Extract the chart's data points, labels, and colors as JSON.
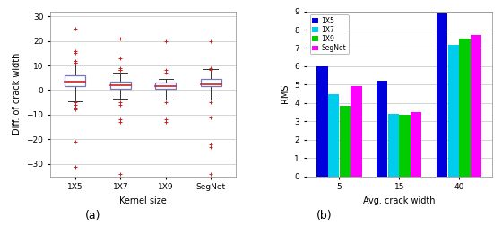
{
  "boxplot": {
    "categories": [
      "1X5",
      "1X7",
      "1X9",
      "SegNet"
    ],
    "xlabel": "Kernel size",
    "ylabel": "Diff. of crack width",
    "ylim": [
      -35,
      32
    ],
    "yticks": [
      -30,
      -20,
      -10,
      0,
      10,
      20,
      30
    ],
    "boxes": [
      {
        "q1": 1.5,
        "median": 3.5,
        "q3": 6.0,
        "whisker_low": -4.5,
        "whisker_high": 10.5
      },
      {
        "q1": 0.5,
        "median": 2.0,
        "q3": 3.5,
        "whisker_low": -3.5,
        "whisker_high": 7.0
      },
      {
        "q1": 0.5,
        "median": 1.5,
        "q3": 3.0,
        "whisker_low": -4.0,
        "whisker_high": 4.5
      },
      {
        "q1": 1.5,
        "median": 2.5,
        "q3": 4.5,
        "whisker_low": -4.0,
        "whisker_high": 8.5
      }
    ],
    "outliers": [
      [
        25,
        16,
        15,
        12,
        11,
        11,
        -5,
        -6,
        -7,
        -8,
        -21,
        -31
      ],
      [
        21,
        13,
        9,
        8,
        8,
        -5,
        -6,
        -12,
        -13,
        -34
      ],
      [
        20,
        8,
        7,
        -5,
        -12,
        -13
      ],
      [
        20,
        9,
        8,
        -5,
        -11,
        -22,
        -23,
        -34
      ]
    ],
    "box_color": "#7777bb",
    "median_color": "#cc2222",
    "whisker_color": "#333333",
    "outlier_color": "#cc2222",
    "bg_color": "#ffffff"
  },
  "barplot": {
    "groups": [
      "5",
      "15",
      "40"
    ],
    "group_positions": [
      0,
      1,
      2
    ],
    "xlabel": "Avg. crack width",
    "ylabel": "RMS",
    "ylim": [
      0,
      9
    ],
    "yticks": [
      0,
      1,
      2,
      3,
      4,
      5,
      6,
      7,
      8,
      9
    ],
    "series": {
      "1X5": [
        6.0,
        5.2,
        8.9
      ],
      "1X7": [
        4.5,
        3.4,
        7.15
      ],
      "1X9": [
        3.85,
        3.35,
        7.5
      ],
      "SegNet": [
        4.9,
        3.5,
        7.7
      ]
    },
    "colors": {
      "1X5": "#0000dd",
      "1X7": "#00ccee",
      "1X9": "#00cc00",
      "SegNet": "#ff00ff"
    },
    "legend_labels": [
      "1X5",
      "1X7",
      "1X9",
      "SegNet"
    ],
    "bg_color": "#ffffff"
  }
}
